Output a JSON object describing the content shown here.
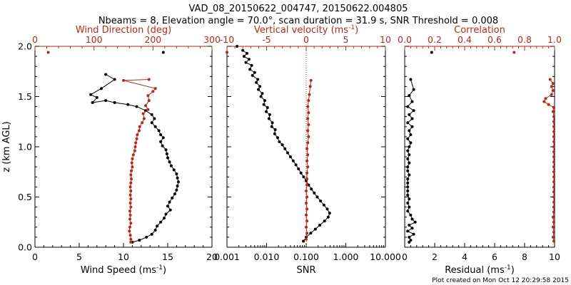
{
  "header": {
    "title_line1": "VAD_08_20150622_004747, 20150622.004805",
    "title_line2": "Nbeams = 8, Elevation angle = 70.0°, scan duration = 31.9 s, SNR Threshold = 0.008"
  },
  "footer": {
    "plot_created": "Plot created on Mon Oct 12 20:29:58 2015"
  },
  "colors": {
    "black": "#000000",
    "red": "#b22a1a"
  },
  "chart_data": [
    {
      "type": "line",
      "panel": "wind",
      "ylabel": "z (km AGL)",
      "ylim": [
        0,
        2
      ],
      "yticks": [
        "0.0",
        "0.5",
        "1.0",
        "1.5",
        "2.0"
      ],
      "bottom_axis": {
        "label": "Wind Speed (ms",
        "label_sup": "-1",
        "label_tail": ")",
        "range": [
          0,
          20
        ],
        "ticks": [
          "0",
          "5",
          "10",
          "15",
          "20"
        ]
      },
      "top_axis": {
        "label": "Wind Direction (deg)",
        "range": [
          0,
          360
        ],
        "ticks": [
          "0",
          "100",
          "200",
          "300"
        ]
      },
      "series": [
        {
          "axis": "bottom",
          "color": "black",
          "points": [
            [
              14.5,
              1.94
            ],
            [
              8,
              1.72
            ],
            [
              9,
              1.67
            ],
            [
              7.5,
              1.58
            ],
            [
              6.3,
              1.52
            ],
            [
              7,
              1.49
            ],
            [
              6.5,
              1.44
            ],
            [
              8,
              1.46
            ],
            [
              9,
              1.44
            ],
            [
              10.5,
              1.42
            ],
            [
              11.5,
              1.4
            ],
            [
              12.5,
              1.36
            ],
            [
              13.2,
              1.32
            ],
            [
              13.5,
              1.28
            ],
            [
              13.2,
              1.24
            ],
            [
              13.6,
              1.2
            ],
            [
              14,
              1.16
            ],
            [
              14.2,
              1.12
            ],
            [
              14.5,
              1.09
            ],
            [
              14.2,
              1.05
            ],
            [
              14.4,
              1.01
            ],
            [
              14.8,
              0.97
            ],
            [
              14.9,
              0.93
            ],
            [
              15,
              0.89
            ],
            [
              15.2,
              0.85
            ],
            [
              15.4,
              0.81
            ],
            [
              15.7,
              0.77
            ],
            [
              16,
              0.73
            ],
            [
              16.1,
              0.69
            ],
            [
              16.2,
              0.65
            ],
            [
              16.1,
              0.61
            ],
            [
              16,
              0.57
            ],
            [
              15.8,
              0.53
            ],
            [
              15.5,
              0.49
            ],
            [
              15.2,
              0.45
            ],
            [
              15,
              0.41
            ],
            [
              15.3,
              0.37
            ],
            [
              14.8,
              0.33
            ],
            [
              14.6,
              0.29
            ],
            [
              14.2,
              0.25
            ],
            [
              13.8,
              0.21
            ],
            [
              13.6,
              0.17
            ],
            [
              13.2,
              0.13
            ],
            [
              12.6,
              0.1
            ],
            [
              11.8,
              0.07
            ],
            [
              11,
              0.05
            ]
          ]
        },
        {
          "axis": "top",
          "color": "red",
          "points": [
            [
              27,
              1.94
            ],
            [
              232,
              1.67
            ],
            [
              180,
              1.66
            ],
            [
              245,
              1.58
            ],
            [
              240,
              1.55
            ],
            [
              230,
              1.51
            ],
            [
              232,
              1.46
            ],
            [
              225,
              1.41
            ],
            [
              230,
              1.37
            ],
            [
              220,
              1.33
            ],
            [
              222,
              1.28
            ],
            [
              218,
              1.24
            ],
            [
              213,
              1.2
            ],
            [
              212,
              1.16
            ],
            [
              208,
              1.12
            ],
            [
              207,
              1.08
            ],
            [
              205,
              1.04
            ],
            [
              204,
              1.0
            ],
            [
              203,
              0.96
            ],
            [
              200,
              0.92
            ],
            [
              198,
              0.88
            ],
            [
              197,
              0.84
            ],
            [
              198,
              0.8
            ],
            [
              196,
              0.76
            ],
            [
              195,
              0.72
            ],
            [
              196,
              0.68
            ],
            [
              195,
              0.64
            ],
            [
              194,
              0.6
            ],
            [
              195,
              0.56
            ],
            [
              194,
              0.52
            ],
            [
              195,
              0.48
            ],
            [
              194,
              0.44
            ],
            [
              195,
              0.4
            ],
            [
              193,
              0.36
            ],
            [
              194,
              0.32
            ],
            [
              193,
              0.28
            ],
            [
              195,
              0.24
            ],
            [
              193,
              0.2
            ],
            [
              192,
              0.16
            ],
            [
              194,
              0.12
            ],
            [
              195,
              0.08
            ],
            [
              195,
              0.05
            ]
          ]
        }
      ]
    },
    {
      "type": "line",
      "panel": "snr",
      "ylim": [
        0,
        2
      ],
      "bottom_axis": {
        "label": "SNR",
        "scale": "log",
        "range": [
          0.001,
          10
        ],
        "ticks": [
          "0.001",
          "0.010",
          "0.100",
          "1.000",
          "10.000"
        ]
      },
      "top_axis": {
        "label": "Vertical velocity (ms",
        "label_sup": "-1",
        "label_tail": ")",
        "range": [
          -10,
          10
        ],
        "ticks": [
          "-10",
          "-5",
          "0",
          "5",
          "10"
        ]
      },
      "series": [
        {
          "axis": "bottom",
          "scale": "log",
          "color": "black",
          "points": [
            [
              0.0018,
              2.0
            ],
            [
              0.0025,
              1.96
            ],
            [
              0.0032,
              1.93
            ],
            [
              0.0027,
              1.9
            ],
            [
              0.0036,
              1.87
            ],
            [
              0.003,
              1.84
            ],
            [
              0.0042,
              1.81
            ],
            [
              0.0038,
              1.77
            ],
            [
              0.005,
              1.74
            ],
            [
              0.0044,
              1.71
            ],
            [
              0.006,
              1.67
            ],
            [
              0.0055,
              1.64
            ],
            [
              0.0068,
              1.6
            ],
            [
              0.0062,
              1.57
            ],
            [
              0.0078,
              1.53
            ],
            [
              0.0072,
              1.5
            ],
            [
              0.009,
              1.46
            ],
            [
              0.0085,
              1.42
            ],
            [
              0.0105,
              1.39
            ],
            [
              0.0098,
              1.35
            ],
            [
              0.012,
              1.32
            ],
            [
              0.0115,
              1.28
            ],
            [
              0.014,
              1.24
            ],
            [
              0.0135,
              1.2
            ],
            [
              0.0165,
              1.17
            ],
            [
              0.016,
              1.13
            ],
            [
              0.019,
              1.09
            ],
            [
              0.021,
              1.05
            ],
            [
              0.025,
              1.02
            ],
            [
              0.029,
              0.98
            ],
            [
              0.034,
              0.94
            ],
            [
              0.04,
              0.9
            ],
            [
              0.047,
              0.86
            ],
            [
              0.055,
              0.82
            ],
            [
              0.064,
              0.78
            ],
            [
              0.074,
              0.74
            ],
            [
              0.086,
              0.7
            ],
            [
              0.1,
              0.66
            ],
            [
              0.115,
              0.62
            ],
            [
              0.135,
              0.58
            ],
            [
              0.16,
              0.54
            ],
            [
              0.19,
              0.5
            ],
            [
              0.23,
              0.46
            ],
            [
              0.28,
              0.42
            ],
            [
              0.34,
              0.38
            ],
            [
              0.39,
              0.34
            ],
            [
              0.36,
              0.3
            ],
            [
              0.29,
              0.26
            ],
            [
              0.22,
              0.22
            ],
            [
              0.17,
              0.18
            ],
            [
              0.13,
              0.14
            ],
            [
              0.1,
              0.1
            ],
            [
              0.085,
              0.06
            ]
          ]
        },
        {
          "axis": "top",
          "color": "red",
          "points": [
            [
              -10,
              1.94
            ],
            [
              0.6,
              1.66
            ],
            [
              0.5,
              1.6
            ],
            [
              0.4,
              1.52
            ],
            [
              0.3,
              1.46
            ],
            [
              0.2,
              1.4
            ],
            [
              0.3,
              1.34
            ],
            [
              0.2,
              1.28
            ],
            [
              0.3,
              1.22
            ],
            [
              0.2,
              1.16
            ],
            [
              0.3,
              1.1
            ],
            [
              0.2,
              1.04
            ],
            [
              0.1,
              0.98
            ],
            [
              0.2,
              0.92
            ],
            [
              0.1,
              0.86
            ],
            [
              0.2,
              0.8
            ],
            [
              0.1,
              0.74
            ],
            [
              0.1,
              0.68
            ],
            [
              0.1,
              0.62
            ],
            [
              0.0,
              0.56
            ],
            [
              0.1,
              0.5
            ],
            [
              0.0,
              0.44
            ],
            [
              0.1,
              0.38
            ],
            [
              0.0,
              0.32
            ],
            [
              0.1,
              0.26
            ],
            [
              0.0,
              0.2
            ],
            [
              0.1,
              0.14
            ],
            [
              0.0,
              0.08
            ]
          ]
        }
      ]
    },
    {
      "type": "line",
      "panel": "residual",
      "ylim": [
        0,
        2
      ],
      "bottom_axis": {
        "label": "Residual (ms",
        "label_sup": "-1",
        "label_tail": ")",
        "range": [
          0,
          10
        ],
        "ticks": [
          "0",
          "2",
          "4",
          "6",
          "8",
          "10"
        ]
      },
      "top_axis": {
        "label": "Correlation",
        "range": [
          0,
          1
        ],
        "ticks": [
          "0.0",
          "0.2",
          "0.4",
          "0.6",
          "0.8",
          "1.0"
        ]
      },
      "series": [
        {
          "axis": "bottom",
          "color": "black",
          "points": [
            [
              1.8,
              1.94
            ],
            [
              0.4,
              1.67
            ],
            [
              0.6,
              1.57
            ],
            [
              0.3,
              1.51
            ],
            [
              0.5,
              1.45
            ],
            [
              0.2,
              1.4
            ],
            [
              0.6,
              1.36
            ],
            [
              0.3,
              1.32
            ],
            [
              0.5,
              1.28
            ],
            [
              0.2,
              1.24
            ],
            [
              0.5,
              1.2
            ],
            [
              0.3,
              1.16
            ],
            [
              0.4,
              1.12
            ],
            [
              0.2,
              1.08
            ],
            [
              0.4,
              1.04
            ],
            [
              0.3,
              1.0
            ],
            [
              0.2,
              0.96
            ],
            [
              0.3,
              0.92
            ],
            [
              0.2,
              0.88
            ],
            [
              0.3,
              0.84
            ],
            [
              0.2,
              0.8
            ],
            [
              0.2,
              0.76
            ],
            [
              0.3,
              0.72
            ],
            [
              0.2,
              0.68
            ],
            [
              0.2,
              0.64
            ],
            [
              0.2,
              0.6
            ],
            [
              0.2,
              0.56
            ],
            [
              0.2,
              0.52
            ],
            [
              0.3,
              0.48
            ],
            [
              0.2,
              0.44
            ],
            [
              0.3,
              0.4
            ],
            [
              0.2,
              0.36
            ],
            [
              0.4,
              0.32
            ],
            [
              0.5,
              0.28
            ],
            [
              0.7,
              0.25
            ],
            [
              0.3,
              0.22
            ],
            [
              0.5,
              0.19
            ],
            [
              0.2,
              0.16
            ],
            [
              0.6,
              0.13
            ],
            [
              0.3,
              0.1
            ],
            [
              0.4,
              0.07
            ],
            [
              0.3,
              0.05
            ]
          ]
        },
        {
          "axis": "top",
          "color": "red",
          "points": [
            [
              0.73,
              1.94
            ],
            [
              0.97,
              1.67
            ],
            [
              0.99,
              1.63
            ],
            [
              0.98,
              1.6
            ],
            [
              0.99,
              1.56
            ],
            [
              0.98,
              1.52
            ],
            [
              0.94,
              1.48
            ],
            [
              0.93,
              1.45
            ],
            [
              0.96,
              1.42
            ],
            [
              0.995,
              1.39
            ],
            [
              0.99,
              1.35
            ],
            [
              0.995,
              1.3
            ],
            [
              0.995,
              1.25
            ],
            [
              0.995,
              1.2
            ],
            [
              0.995,
              1.15
            ],
            [
              0.995,
              1.1
            ],
            [
              0.995,
              1.05
            ],
            [
              0.995,
              1.0
            ],
            [
              0.995,
              0.95
            ],
            [
              0.995,
              0.9
            ],
            [
              0.995,
              0.85
            ],
            [
              0.995,
              0.8
            ],
            [
              0.995,
              0.75
            ],
            [
              0.995,
              0.7
            ],
            [
              0.995,
              0.65
            ],
            [
              0.995,
              0.6
            ],
            [
              0.995,
              0.55
            ],
            [
              0.995,
              0.5
            ],
            [
              0.995,
              0.45
            ],
            [
              0.995,
              0.4
            ],
            [
              0.995,
              0.35
            ],
            [
              0.99,
              0.3
            ],
            [
              0.995,
              0.25
            ],
            [
              0.99,
              0.2
            ],
            [
              0.995,
              0.15
            ],
            [
              0.99,
              0.1
            ],
            [
              0.995,
              0.06
            ]
          ]
        }
      ]
    }
  ]
}
